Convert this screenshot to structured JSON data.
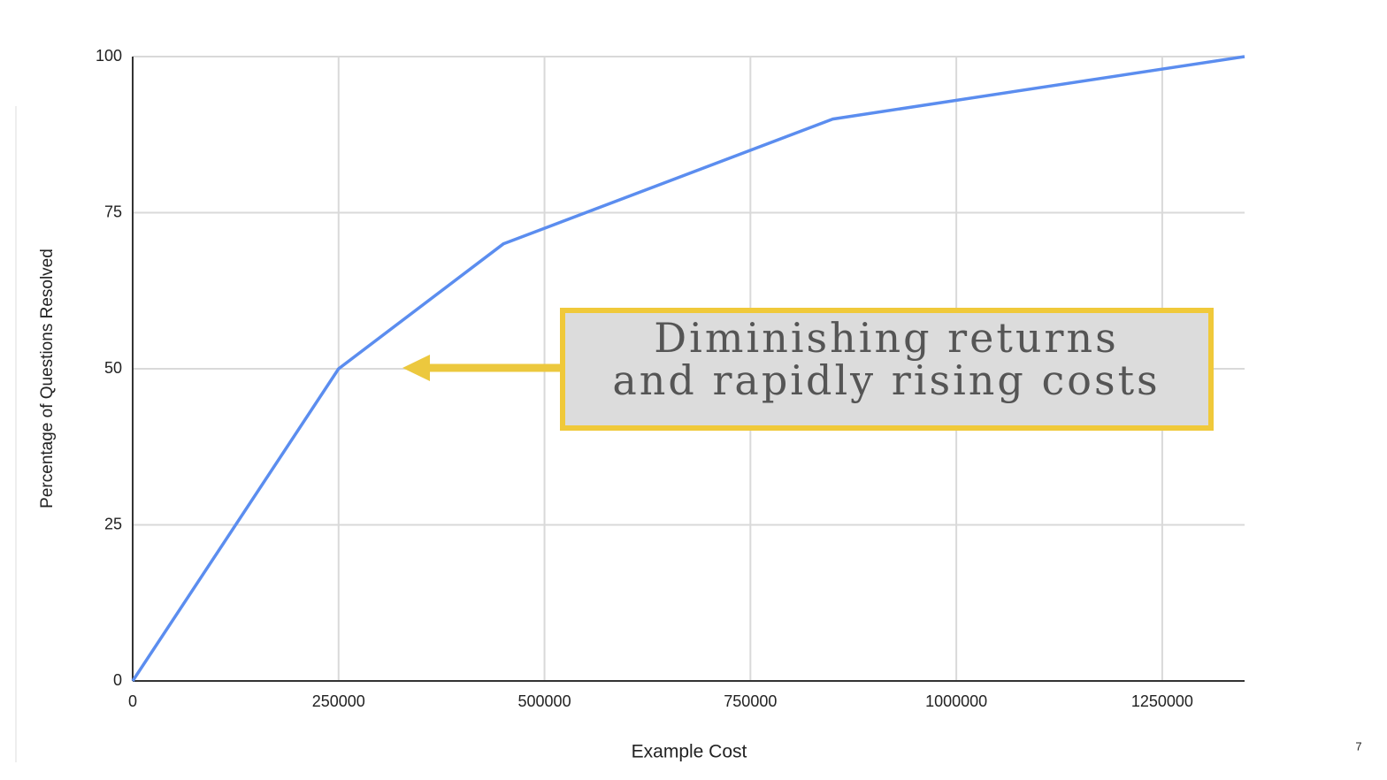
{
  "chart_data": {
    "type": "line",
    "x_label": "Example Cost",
    "y_label": "Percentage of Questions Resolved",
    "x": [
      0,
      250000,
      450000,
      850000,
      1350000
    ],
    "values": [
      0,
      50,
      70,
      90,
      100
    ],
    "color": "#5b8def",
    "xlim": [
      0,
      1350000
    ],
    "xticks": [
      0,
      250000,
      500000,
      750000,
      1000000,
      1250000
    ],
    "ylim": [
      0,
      100
    ],
    "yticks": [
      0,
      25,
      50,
      75,
      100
    ],
    "grid": true,
    "annotation": [
      "Diminishing returns",
      "and rapidly rising costs"
    ]
  },
  "slide": {
    "page_number": "7"
  }
}
